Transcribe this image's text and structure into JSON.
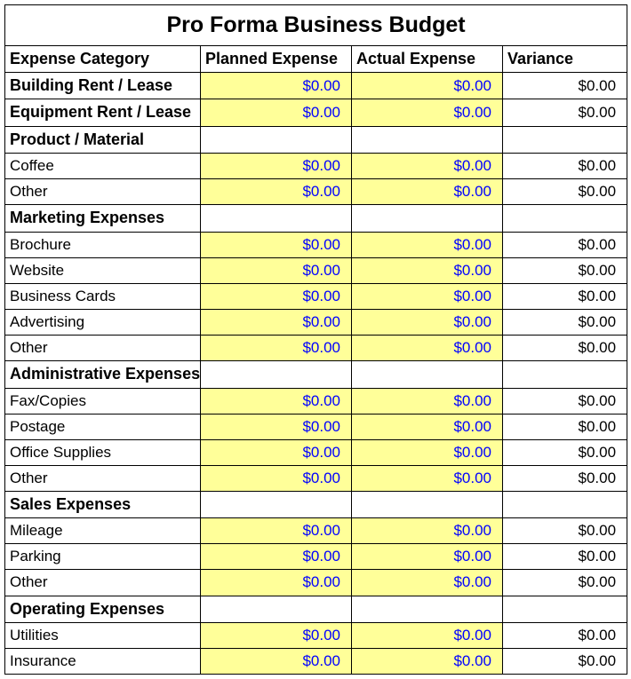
{
  "title": "Pro Forma Business Budget",
  "columns": {
    "category": "Expense Category",
    "planned": "Planned Expense",
    "actual": "Actual Expense",
    "variance": "Variance"
  },
  "colors": {
    "highlight_bg": "#ffff99",
    "value_text": "#0000ff",
    "variance_text": "#000000",
    "border": "#000000",
    "background": "#ffffff"
  },
  "fonts": {
    "title_size": 25,
    "header_size": 18,
    "cell_size": 17
  },
  "rows": [
    {
      "type": "bold-item",
      "label": "Building Rent / Lease",
      "planned": "$0.00",
      "actual": "$0.00",
      "variance": "$0.00"
    },
    {
      "type": "bold-item",
      "label": "Equipment Rent / Lease",
      "planned": "$0.00",
      "actual": "$0.00",
      "variance": "$0.00"
    },
    {
      "type": "section",
      "label": "Product / Material"
    },
    {
      "type": "item",
      "label": "Coffee",
      "planned": "$0.00",
      "actual": "$0.00",
      "variance": "$0.00"
    },
    {
      "type": "item",
      "label": "Other",
      "planned": "$0.00",
      "actual": "$0.00",
      "variance": "$0.00"
    },
    {
      "type": "section",
      "label": "Marketing Expenses"
    },
    {
      "type": "item",
      "label": "Brochure",
      "planned": "$0.00",
      "actual": "$0.00",
      "variance": "$0.00"
    },
    {
      "type": "item",
      "label": "Website",
      "planned": "$0.00",
      "actual": "$0.00",
      "variance": "$0.00"
    },
    {
      "type": "item",
      "label": "Business Cards",
      "planned": "$0.00",
      "actual": "$0.00",
      "variance": "$0.00"
    },
    {
      "type": "item",
      "label": "Advertising",
      "planned": "$0.00",
      "actual": "$0.00",
      "variance": "$0.00"
    },
    {
      "type": "item",
      "label": "Other",
      "planned": "$0.00",
      "actual": "$0.00",
      "variance": "$0.00"
    },
    {
      "type": "section",
      "label": "Administrative Expenses"
    },
    {
      "type": "item",
      "label": "Fax/Copies",
      "planned": "$0.00",
      "actual": "$0.00",
      "variance": "$0.00"
    },
    {
      "type": "item",
      "label": "Postage",
      "planned": "$0.00",
      "actual": "$0.00",
      "variance": "$0.00"
    },
    {
      "type": "item",
      "label": "Office Supplies",
      "planned": "$0.00",
      "actual": "$0.00",
      "variance": "$0.00"
    },
    {
      "type": "item",
      "label": "Other",
      "planned": "$0.00",
      "actual": "$0.00",
      "variance": "$0.00"
    },
    {
      "type": "section",
      "label": "Sales Expenses"
    },
    {
      "type": "item",
      "label": "Mileage",
      "planned": "$0.00",
      "actual": "$0.00",
      "variance": "$0.00"
    },
    {
      "type": "item",
      "label": "Parking",
      "planned": "$0.00",
      "actual": "$0.00",
      "variance": "$0.00"
    },
    {
      "type": "item",
      "label": "Other",
      "planned": "$0.00",
      "actual": "$0.00",
      "variance": "$0.00"
    },
    {
      "type": "section",
      "label": "Operating Expenses"
    },
    {
      "type": "item",
      "label": "Utilities",
      "planned": "$0.00",
      "actual": "$0.00",
      "variance": "$0.00"
    },
    {
      "type": "item",
      "label": "Insurance",
      "planned": "$0.00",
      "actual": "$0.00",
      "variance": "$0.00"
    }
  ]
}
